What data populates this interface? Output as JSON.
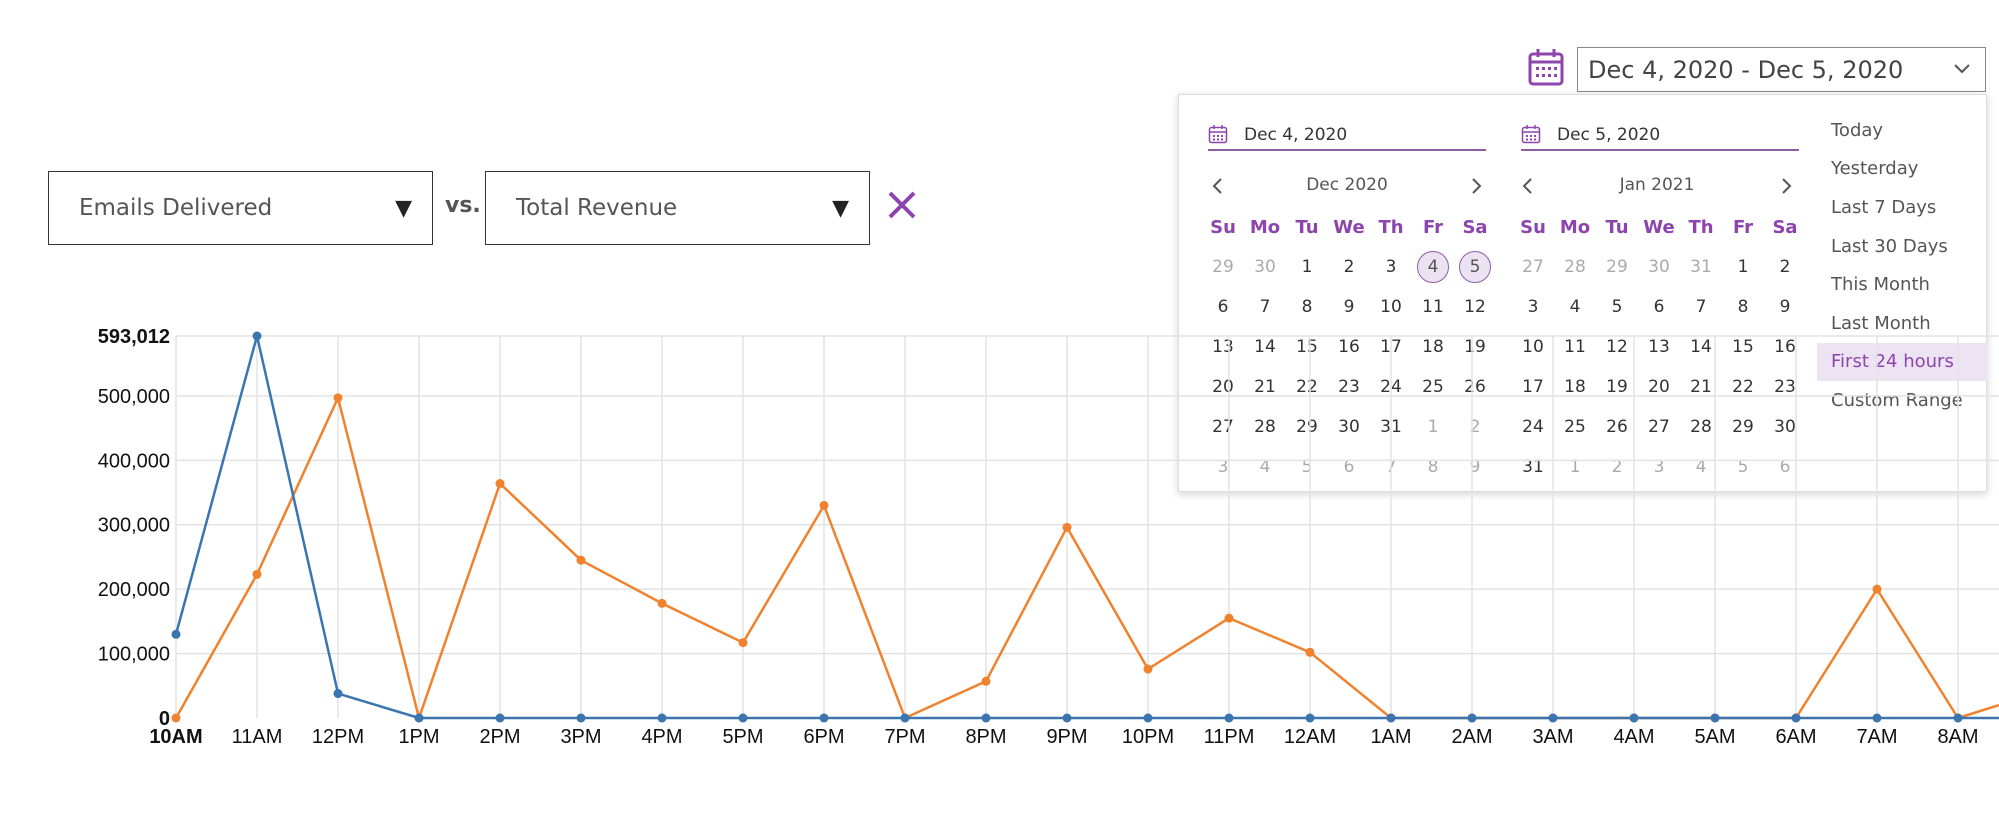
{
  "metric_selector": {
    "left": {
      "label": "Emails Delivered"
    },
    "vs_label": "vs.",
    "right": {
      "label": "Total Revenue"
    },
    "clear_icon": "close-icon"
  },
  "date_range": {
    "value": "Dec 4, 2020 - Dec 5, 2020",
    "icon": "calendar-icon",
    "start_input": "Dec 4, 2020",
    "end_input": "Dec 5, 2020",
    "calendars": [
      {
        "month": "Dec 2020",
        "weekdays": [
          "Su",
          "Mo",
          "Tu",
          "We",
          "Th",
          "Fr",
          "Sa"
        ],
        "weeks": [
          [
            {
              "d": "29",
              "m": true
            },
            {
              "d": "30",
              "m": true
            },
            {
              "d": "1"
            },
            {
              "d": "2"
            },
            {
              "d": "3"
            },
            {
              "d": "4",
              "s": true
            },
            {
              "d": "5",
              "s": true
            }
          ],
          [
            {
              "d": "6"
            },
            {
              "d": "7"
            },
            {
              "d": "8"
            },
            {
              "d": "9"
            },
            {
              "d": "10"
            },
            {
              "d": "11"
            },
            {
              "d": "12"
            }
          ],
          [
            {
              "d": "13"
            },
            {
              "d": "14"
            },
            {
              "d": "15"
            },
            {
              "d": "16"
            },
            {
              "d": "17"
            },
            {
              "d": "18"
            },
            {
              "d": "19"
            }
          ],
          [
            {
              "d": "20"
            },
            {
              "d": "21"
            },
            {
              "d": "22"
            },
            {
              "d": "23"
            },
            {
              "d": "24"
            },
            {
              "d": "25"
            },
            {
              "d": "26"
            }
          ],
          [
            {
              "d": "27"
            },
            {
              "d": "28"
            },
            {
              "d": "29"
            },
            {
              "d": "30"
            },
            {
              "d": "31"
            },
            {
              "d": "1",
              "m": true
            },
            {
              "d": "2",
              "m": true
            }
          ],
          [
            {
              "d": "3",
              "m": true
            },
            {
              "d": "4",
              "m": true
            },
            {
              "d": "5",
              "m": true
            },
            {
              "d": "6",
              "m": true
            },
            {
              "d": "7",
              "m": true
            },
            {
              "d": "8",
              "m": true
            },
            {
              "d": "9",
              "m": true
            }
          ]
        ]
      },
      {
        "month": "Jan 2021",
        "weekdays": [
          "Su",
          "Mo",
          "Tu",
          "We",
          "Th",
          "Fr",
          "Sa"
        ],
        "weeks": [
          [
            {
              "d": "27",
              "m": true
            },
            {
              "d": "28",
              "m": true
            },
            {
              "d": "29",
              "m": true
            },
            {
              "d": "30",
              "m": true
            },
            {
              "d": "31",
              "m": true
            },
            {
              "d": "1"
            },
            {
              "d": "2"
            }
          ],
          [
            {
              "d": "3"
            },
            {
              "d": "4"
            },
            {
              "d": "5"
            },
            {
              "d": "6"
            },
            {
              "d": "7"
            },
            {
              "d": "8"
            },
            {
              "d": "9"
            }
          ],
          [
            {
              "d": "10"
            },
            {
              "d": "11"
            },
            {
              "d": "12"
            },
            {
              "d": "13"
            },
            {
              "d": "14"
            },
            {
              "d": "15"
            },
            {
              "d": "16"
            }
          ],
          [
            {
              "d": "17"
            },
            {
              "d": "18"
            },
            {
              "d": "19"
            },
            {
              "d": "20"
            },
            {
              "d": "21"
            },
            {
              "d": "22"
            },
            {
              "d": "23"
            }
          ],
          [
            {
              "d": "24"
            },
            {
              "d": "25"
            },
            {
              "d": "26"
            },
            {
              "d": "27"
            },
            {
              "d": "28"
            },
            {
              "d": "29"
            },
            {
              "d": "30"
            }
          ],
          [
            {
              "d": "31"
            },
            {
              "d": "1",
              "m": true
            },
            {
              "d": "2",
              "m": true
            },
            {
              "d": "3",
              "m": true
            },
            {
              "d": "4",
              "m": true
            },
            {
              "d": "5",
              "m": true
            },
            {
              "d": "6",
              "m": true
            }
          ]
        ]
      }
    ],
    "presets": [
      "Today",
      "Yesterday",
      "Last 7 Days",
      "Last 30 Days",
      "This Month",
      "Last Month",
      "First 24 hours",
      "Custom Range"
    ],
    "active_preset": "First 24 hours"
  },
  "colors": {
    "accent": "#8e44ad",
    "series_blue": "#3a75b0",
    "series_orange": "#f0822d",
    "grid": "#e3e3e3"
  },
  "chart_data": {
    "type": "line",
    "x": [
      "10AM",
      "11AM",
      "12PM",
      "1PM",
      "2PM",
      "3PM",
      "4PM",
      "5PM",
      "6PM",
      "7PM",
      "8PM",
      "9PM",
      "10PM",
      "11PM",
      "12AM",
      "1AM",
      "2AM",
      "3AM",
      "4AM",
      "5AM",
      "6AM",
      "7AM",
      "8AM"
    ],
    "y_ticks": [
      {
        "value": 0,
        "label": "0"
      },
      {
        "value": 100000,
        "label": "100,000"
      },
      {
        "value": 200000,
        "label": "200,000"
      },
      {
        "value": 300000,
        "label": "300,000"
      },
      {
        "value": 400000,
        "label": "400,000"
      },
      {
        "value": 500000,
        "label": "500,000"
      },
      {
        "value": 593012,
        "label": "593,012"
      }
    ],
    "ylim": [
      0,
      593012
    ],
    "grid": true,
    "series": [
      {
        "color": "#3a75b0",
        "values": [
          130000,
          593012,
          38000,
          0,
          0,
          0,
          0,
          0,
          0,
          0,
          0,
          0,
          0,
          0,
          0,
          0,
          0,
          0,
          0,
          0,
          0,
          0,
          0
        ]
      },
      {
        "color": "#f0822d",
        "values": [
          0,
          223000,
          497000,
          0,
          364000,
          245000,
          178000,
          117000,
          330000,
          0,
          57000,
          296000,
          76000,
          155000,
          102000,
          0,
          0,
          0,
          0,
          0,
          0,
          200000,
          0
        ]
      }
    ]
  }
}
